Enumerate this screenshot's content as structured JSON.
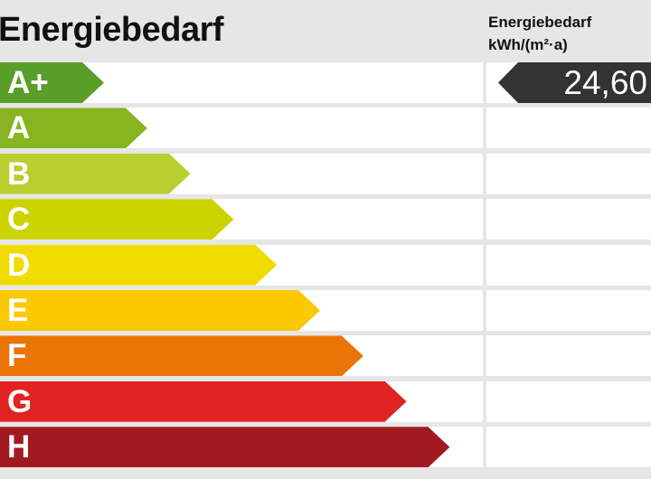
{
  "title": "Energiebedarf",
  "unit_header": {
    "line1": "Energiebedarf",
    "line2": "kWh/(m²·a)"
  },
  "value": "24,60",
  "value_class": "A+",
  "marker_color": "#333333",
  "classes": [
    {
      "label": "A+",
      "color": "#5a9e2a"
    },
    {
      "label": "A",
      "color": "#88b421"
    },
    {
      "label": "B",
      "color": "#b9cf2f"
    },
    {
      "label": "C",
      "color": "#cbd400"
    },
    {
      "label": "D",
      "color": "#f0dc00"
    },
    {
      "label": "E",
      "color": "#fcc800"
    },
    {
      "label": "F",
      "color": "#eb7407"
    },
    {
      "label": "G",
      "color": "#e12421"
    },
    {
      "label": "H",
      "color": "#a11a22"
    }
  ]
}
